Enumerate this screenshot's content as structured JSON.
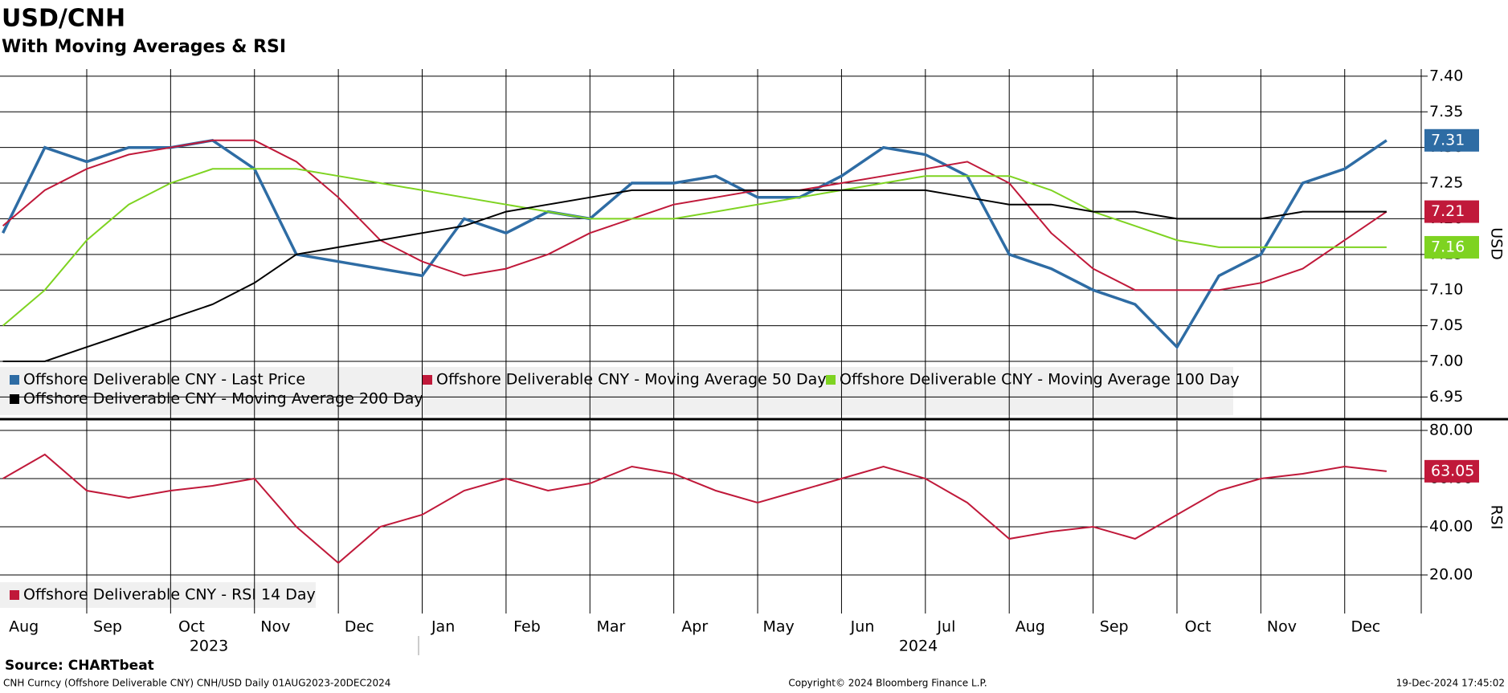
{
  "title": "USD/CNH",
  "subtitle": "With Moving Averages & RSI",
  "year_labels": [
    "2023",
    "2024"
  ],
  "footer": {
    "source": "Source: CHARTbeat",
    "description": "CNH Curncy (Offshore Deliverable CNY) CNH/USD  Daily 01AUG2023-20DEC2024",
    "copyright": "Copyright© 2024 Bloomberg Finance L.P.",
    "timestamp": "19-Dec-2024 17:45:02"
  },
  "chart_data": [
    {
      "type": "line",
      "axis_label": "USD",
      "grid": true,
      "categories": [
        "Aug",
        null,
        "Sep",
        null,
        "Oct",
        null,
        "Nov",
        null,
        "Dec",
        null,
        "Jan",
        null,
        "Feb",
        null,
        "Mar",
        null,
        "Apr",
        null,
        "May",
        null,
        "Jun",
        null,
        "Jul",
        null,
        "Aug",
        null,
        "Sep",
        null,
        "Oct",
        null,
        "Nov",
        null,
        "Dec",
        null
      ],
      "ylim": [
        6.92,
        7.41
      ],
      "yticks": [
        6.95,
        {
          "value": 7.0,
          "label": "7.00"
        },
        7.05,
        {
          "value": 7.1,
          "label": "7.10"
        },
        7.15,
        {
          "value": 7.2,
          "label": "7.20"
        },
        7.25,
        {
          "value": 7.3,
          "label": "7.30"
        },
        7.35,
        {
          "value": 7.4,
          "label": "7.40"
        }
      ],
      "series": [
        {
          "name": "Offshore Deliverable CNY - Last Price",
          "color": "#2e6ca4",
          "last_value_label": "7.31",
          "values": [
            7.18,
            7.3,
            7.28,
            7.3,
            7.3,
            7.31,
            7.27,
            7.15,
            7.14,
            7.13,
            7.12,
            7.2,
            7.18,
            7.21,
            7.2,
            7.25,
            7.25,
            7.26,
            7.23,
            7.23,
            7.26,
            7.3,
            7.29,
            7.26,
            7.15,
            7.13,
            7.1,
            7.08,
            7.02,
            7.12,
            7.15,
            7.25,
            7.27,
            7.31
          ]
        },
        {
          "name": "Offshore Deliverable CNY - Moving Average 50 Day",
          "color": "#c0193a",
          "last_value_label": "7.21",
          "values": [
            7.19,
            7.24,
            7.27,
            7.29,
            7.3,
            7.31,
            7.31,
            7.28,
            7.23,
            7.17,
            7.14,
            7.12,
            7.13,
            7.15,
            7.18,
            7.2,
            7.22,
            7.23,
            7.24,
            7.24,
            7.25,
            7.26,
            7.27,
            7.28,
            7.25,
            7.18,
            7.13,
            7.1,
            7.1,
            7.1,
            7.11,
            7.13,
            7.17,
            7.21
          ]
        },
        {
          "name": "Offshore Deliverable CNY - Moving Average 100 Day",
          "color": "#7ed321",
          "last_value_label": "7.16",
          "values": [
            7.05,
            7.1,
            7.17,
            7.22,
            7.25,
            7.27,
            7.27,
            7.27,
            7.26,
            7.25,
            7.24,
            7.23,
            7.22,
            7.21,
            7.2,
            7.2,
            7.2,
            7.21,
            7.22,
            7.23,
            7.24,
            7.25,
            7.26,
            7.26,
            7.26,
            7.24,
            7.21,
            7.19,
            7.17,
            7.16,
            7.16,
            7.16,
            7.16,
            7.16
          ]
        },
        {
          "name": "Offshore Deliverable CNY - Moving Average 200 Day",
          "color": "#000000",
          "values": [
            7.0,
            7.0,
            7.02,
            7.04,
            7.06,
            7.08,
            7.11,
            7.15,
            7.16,
            7.17,
            7.18,
            7.19,
            7.21,
            7.22,
            7.23,
            7.24,
            7.24,
            7.24,
            7.24,
            7.24,
            7.24,
            7.24,
            7.24,
            7.23,
            7.22,
            7.22,
            7.21,
            7.21,
            7.2,
            7.2,
            7.2,
            7.21,
            7.21,
            7.21
          ]
        }
      ]
    },
    {
      "type": "line",
      "axis_label": "RSI",
      "grid": true,
      "ylim": [
        4,
        84
      ],
      "yticks": [
        {
          "value": 20,
          "label": "20.00"
        },
        {
          "value": 40,
          "label": "40.00"
        },
        {
          "value": 60,
          "label": "60.00"
        },
        {
          "value": 80,
          "label": "80.00"
        }
      ],
      "series": [
        {
          "name": "Offshore Deliverable CNY - RSI 14 Day",
          "color": "#c0193a",
          "last_value_label": "63.05",
          "values": [
            60,
            70,
            55,
            52,
            55,
            57,
            60,
            40,
            25,
            40,
            45,
            55,
            60,
            55,
            58,
            65,
            62,
            55,
            50,
            55,
            60,
            65,
            60,
            50,
            35,
            38,
            40,
            35,
            45,
            55,
            60,
            62,
            65,
            63.05
          ]
        }
      ]
    }
  ]
}
